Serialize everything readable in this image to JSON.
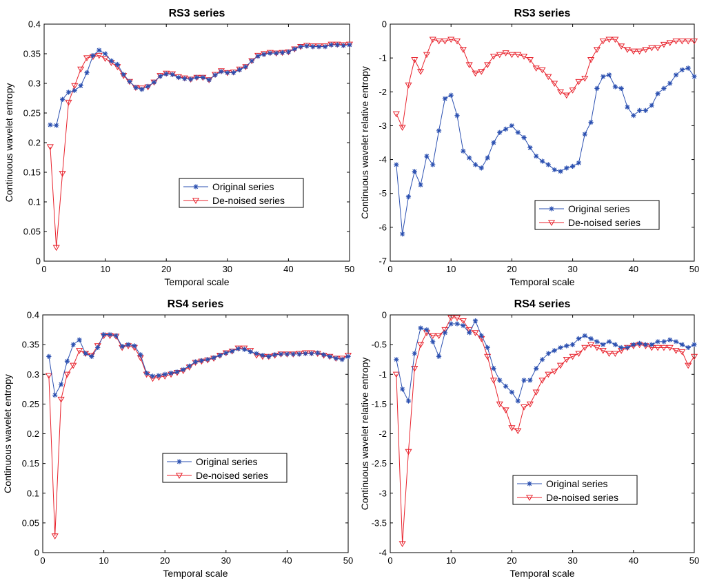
{
  "colors": {
    "original": "#2a4fb0",
    "denoised": "#e8212b",
    "axis": "#000000",
    "background": "#ffffff"
  },
  "chart_data": [
    {
      "type": "line",
      "title": "RS3 series",
      "xlabel": "Temporal scale",
      "ylabel": "Continuous wavelet entropy",
      "xlim": [
        0,
        50
      ],
      "ylim": [
        0,
        0.4
      ],
      "xticks": [
        0,
        10,
        20,
        30,
        40,
        50
      ],
      "yticks": [
        0,
        0.05,
        0.1,
        0.15,
        0.2,
        0.25,
        0.3,
        0.35,
        0.4
      ],
      "ytick_labels": [
        "0",
        "0.05",
        "0.1",
        "0.15",
        "0.2",
        "0.25",
        "0.3",
        "0.35",
        "0.4"
      ],
      "legend_position": "center-right",
      "x": [
        1,
        2,
        3,
        4,
        5,
        6,
        7,
        8,
        9,
        10,
        11,
        12,
        13,
        14,
        15,
        16,
        17,
        18,
        19,
        20,
        21,
        22,
        23,
        24,
        25,
        26,
        27,
        28,
        29,
        30,
        31,
        32,
        33,
        34,
        35,
        36,
        37,
        38,
        39,
        40,
        41,
        42,
        43,
        44,
        45,
        46,
        47,
        48,
        49,
        50
      ],
      "series": [
        {
          "name": "Original series",
          "marker": "star",
          "values": [
            0.23,
            0.229,
            0.273,
            0.285,
            0.288,
            0.296,
            0.318,
            0.347,
            0.356,
            0.35,
            0.338,
            0.332,
            0.315,
            0.303,
            0.293,
            0.29,
            0.295,
            0.302,
            0.312,
            0.316,
            0.315,
            0.31,
            0.308,
            0.307,
            0.31,
            0.31,
            0.306,
            0.314,
            0.32,
            0.318,
            0.318,
            0.323,
            0.328,
            0.338,
            0.346,
            0.349,
            0.351,
            0.351,
            0.352,
            0.353,
            0.358,
            0.362,
            0.363,
            0.362,
            0.362,
            0.362,
            0.365,
            0.365,
            0.364,
            0.365
          ]
        },
        {
          "name": "De-noised series",
          "marker": "triangle",
          "values": [
            0.193,
            0.023,
            0.148,
            0.268,
            0.296,
            0.324,
            0.343,
            0.345,
            0.347,
            0.342,
            0.335,
            0.328,
            0.313,
            0.303,
            0.293,
            0.292,
            0.294,
            0.302,
            0.313,
            0.317,
            0.316,
            0.311,
            0.309,
            0.307,
            0.31,
            0.31,
            0.306,
            0.315,
            0.321,
            0.318,
            0.319,
            0.324,
            0.328,
            0.338,
            0.347,
            0.35,
            0.352,
            0.351,
            0.352,
            0.353,
            0.358,
            0.362,
            0.364,
            0.363,
            0.363,
            0.363,
            0.366,
            0.366,
            0.365,
            0.366
          ]
        }
      ]
    },
    {
      "type": "line",
      "title": "RS3 series",
      "xlabel": "Temporal scale",
      "ylabel": "Continuous wavelet relative entropy",
      "xlim": [
        0,
        50
      ],
      "ylim": [
        -7,
        0
      ],
      "xticks": [
        0,
        10,
        20,
        30,
        40,
        50
      ],
      "yticks": [
        -7,
        -6,
        -5,
        -4,
        -3,
        -2,
        -1,
        0
      ],
      "ytick_labels": [
        "-7",
        "-6",
        "-5",
        "-4",
        "-3",
        "-2",
        "-1",
        "0"
      ],
      "legend_position": "lower-right",
      "x": [
        1,
        2,
        3,
        4,
        5,
        6,
        7,
        8,
        9,
        10,
        11,
        12,
        13,
        14,
        15,
        16,
        17,
        18,
        19,
        20,
        21,
        22,
        23,
        24,
        25,
        26,
        27,
        28,
        29,
        30,
        31,
        32,
        33,
        34,
        35,
        36,
        37,
        38,
        39,
        40,
        41,
        42,
        43,
        44,
        45,
        46,
        47,
        48,
        49,
        50
      ],
      "series": [
        {
          "name": "Original series",
          "marker": "star",
          "values": [
            -4.15,
            -6.2,
            -5.1,
            -4.35,
            -4.75,
            -3.9,
            -4.15,
            -3.15,
            -2.2,
            -2.1,
            -2.7,
            -3.75,
            -3.95,
            -4.15,
            -4.25,
            -3.95,
            -3.5,
            -3.2,
            -3.1,
            -3.0,
            -3.2,
            -3.35,
            -3.65,
            -3.9,
            -4.05,
            -4.15,
            -4.3,
            -4.35,
            -4.25,
            -4.2,
            -4.1,
            -3.25,
            -2.9,
            -1.9,
            -1.55,
            -1.5,
            -1.85,
            -1.9,
            -2.45,
            -2.7,
            -2.55,
            -2.55,
            -2.4,
            -2.05,
            -1.9,
            -1.75,
            -1.5,
            -1.35,
            -1.3,
            -1.55
          ]
        },
        {
          "name": "De-noised series",
          "marker": "triangle",
          "values": [
            -2.65,
            -3.05,
            -1.8,
            -1.05,
            -1.4,
            -0.9,
            -0.45,
            -0.5,
            -0.5,
            -0.45,
            -0.5,
            -0.75,
            -1.2,
            -1.45,
            -1.4,
            -1.2,
            -0.95,
            -0.9,
            -0.85,
            -0.9,
            -0.9,
            -0.95,
            -1.05,
            -1.3,
            -1.35,
            -1.55,
            -1.75,
            -2.0,
            -2.1,
            -1.95,
            -1.7,
            -1.6,
            -1.05,
            -0.75,
            -0.5,
            -0.45,
            -0.45,
            -0.65,
            -0.75,
            -0.8,
            -0.8,
            -0.75,
            -0.7,
            -0.7,
            -0.6,
            -0.55,
            -0.5,
            -0.5,
            -0.5,
            -0.5
          ]
        }
      ]
    },
    {
      "type": "line",
      "title": "RS4 series",
      "xlabel": "Temporal scale",
      "ylabel": "Continuous wavelet entropy",
      "xlim": [
        0,
        50
      ],
      "ylim": [
        0,
        0.4
      ],
      "xticks": [
        0,
        10,
        20,
        30,
        40,
        50
      ],
      "yticks": [
        0,
        0.05,
        0.1,
        0.15,
        0.2,
        0.25,
        0.3,
        0.35,
        0.4
      ],
      "ytick_labels": [
        "0",
        "0.05",
        "0.1",
        "0.15",
        "0.2",
        "0.25",
        "0.3",
        "0.35",
        "0.4"
      ],
      "legend_position": "center-right",
      "x": [
        1,
        2,
        3,
        4,
        5,
        6,
        7,
        8,
        9,
        10,
        11,
        12,
        13,
        14,
        15,
        16,
        17,
        18,
        19,
        20,
        21,
        22,
        23,
        24,
        25,
        26,
        27,
        28,
        29,
        30,
        31,
        32,
        33,
        34,
        35,
        36,
        37,
        38,
        39,
        40,
        41,
        42,
        43,
        44,
        45,
        46,
        47,
        48,
        49,
        50
      ],
      "series": [
        {
          "name": "Original series",
          "marker": "star",
          "values": [
            0.33,
            0.265,
            0.283,
            0.322,
            0.35,
            0.358,
            0.335,
            0.33,
            0.345,
            0.367,
            0.367,
            0.365,
            0.347,
            0.35,
            0.348,
            0.333,
            0.302,
            0.297,
            0.298,
            0.3,
            0.302,
            0.304,
            0.308,
            0.314,
            0.321,
            0.323,
            0.325,
            0.328,
            0.332,
            0.336,
            0.339,
            0.343,
            0.342,
            0.338,
            0.335,
            0.332,
            0.33,
            0.333,
            0.334,
            0.334,
            0.334,
            0.334,
            0.335,
            0.335,
            0.336,
            0.333,
            0.33,
            0.327,
            0.325,
            0.33
          ]
        },
        {
          "name": "De-noised series",
          "marker": "triangle",
          "values": [
            0.298,
            0.028,
            0.258,
            0.3,
            0.315,
            0.34,
            0.335,
            0.332,
            0.348,
            0.365,
            0.365,
            0.364,
            0.345,
            0.348,
            0.345,
            0.328,
            0.3,
            0.293,
            0.295,
            0.297,
            0.3,
            0.303,
            0.306,
            0.312,
            0.32,
            0.322,
            0.324,
            0.327,
            0.332,
            0.336,
            0.339,
            0.344,
            0.344,
            0.34,
            0.332,
            0.33,
            0.33,
            0.332,
            0.334,
            0.334,
            0.334,
            0.335,
            0.336,
            0.336,
            0.335,
            0.332,
            0.33,
            0.327,
            0.327,
            0.332
          ]
        }
      ]
    },
    {
      "type": "line",
      "title": "RS4 series",
      "xlabel": "Temporal scale",
      "ylabel": "Continuous wavelet relative entropy",
      "xlim": [
        0,
        50
      ],
      "ylim": [
        -4,
        0
      ],
      "xticks": [
        0,
        10,
        20,
        30,
        40,
        50
      ],
      "yticks": [
        -4,
        -3.5,
        -3,
        -2.5,
        -2,
        -1.5,
        -1,
        -0.5,
        0
      ],
      "ytick_labels": [
        "-4",
        "-3.5",
        "-3",
        "-2.5",
        "-2",
        "-1.5",
        "-1",
        "-0.5",
        "0"
      ],
      "legend_position": "lower-right",
      "x": [
        1,
        2,
        3,
        4,
        5,
        6,
        7,
        8,
        9,
        10,
        11,
        12,
        13,
        14,
        15,
        16,
        17,
        18,
        19,
        20,
        21,
        22,
        23,
        24,
        25,
        26,
        27,
        28,
        29,
        30,
        31,
        32,
        33,
        34,
        35,
        36,
        37,
        38,
        39,
        40,
        41,
        42,
        43,
        44,
        45,
        46,
        47,
        48,
        49,
        50
      ],
      "series": [
        {
          "name": "Original series",
          "marker": "star",
          "values": [
            -0.75,
            -1.25,
            -1.45,
            -0.65,
            -0.22,
            -0.25,
            -0.45,
            -0.7,
            -0.3,
            -0.15,
            -0.15,
            -0.18,
            -0.3,
            -0.1,
            -0.35,
            -0.55,
            -0.9,
            -1.1,
            -1.2,
            -1.3,
            -1.45,
            -1.1,
            -1.1,
            -0.9,
            -0.75,
            -0.65,
            -0.6,
            -0.55,
            -0.52,
            -0.5,
            -0.4,
            -0.35,
            -0.4,
            -0.45,
            -0.5,
            -0.45,
            -0.5,
            -0.55,
            -0.55,
            -0.5,
            -0.48,
            -0.5,
            -0.5,
            -0.45,
            -0.45,
            -0.42,
            -0.45,
            -0.5,
            -0.55,
            -0.5
          ]
        },
        {
          "name": "De-noised series",
          "marker": "triangle",
          "values": [
            -1.0,
            -3.85,
            -2.3,
            -0.9,
            -0.5,
            -0.3,
            -0.35,
            -0.35,
            -0.25,
            -0.05,
            -0.05,
            -0.1,
            -0.25,
            -0.3,
            -0.4,
            -0.7,
            -1.1,
            -1.5,
            -1.6,
            -1.9,
            -1.95,
            -1.55,
            -1.5,
            -1.3,
            -1.1,
            -1.0,
            -0.95,
            -0.85,
            -0.75,
            -0.7,
            -0.65,
            -0.55,
            -0.5,
            -0.55,
            -0.6,
            -0.65,
            -0.65,
            -0.6,
            -0.55,
            -0.52,
            -0.5,
            -0.52,
            -0.55,
            -0.55,
            -0.55,
            -0.55,
            -0.6,
            -0.62,
            -0.85,
            -0.7
          ]
        }
      ]
    }
  ]
}
